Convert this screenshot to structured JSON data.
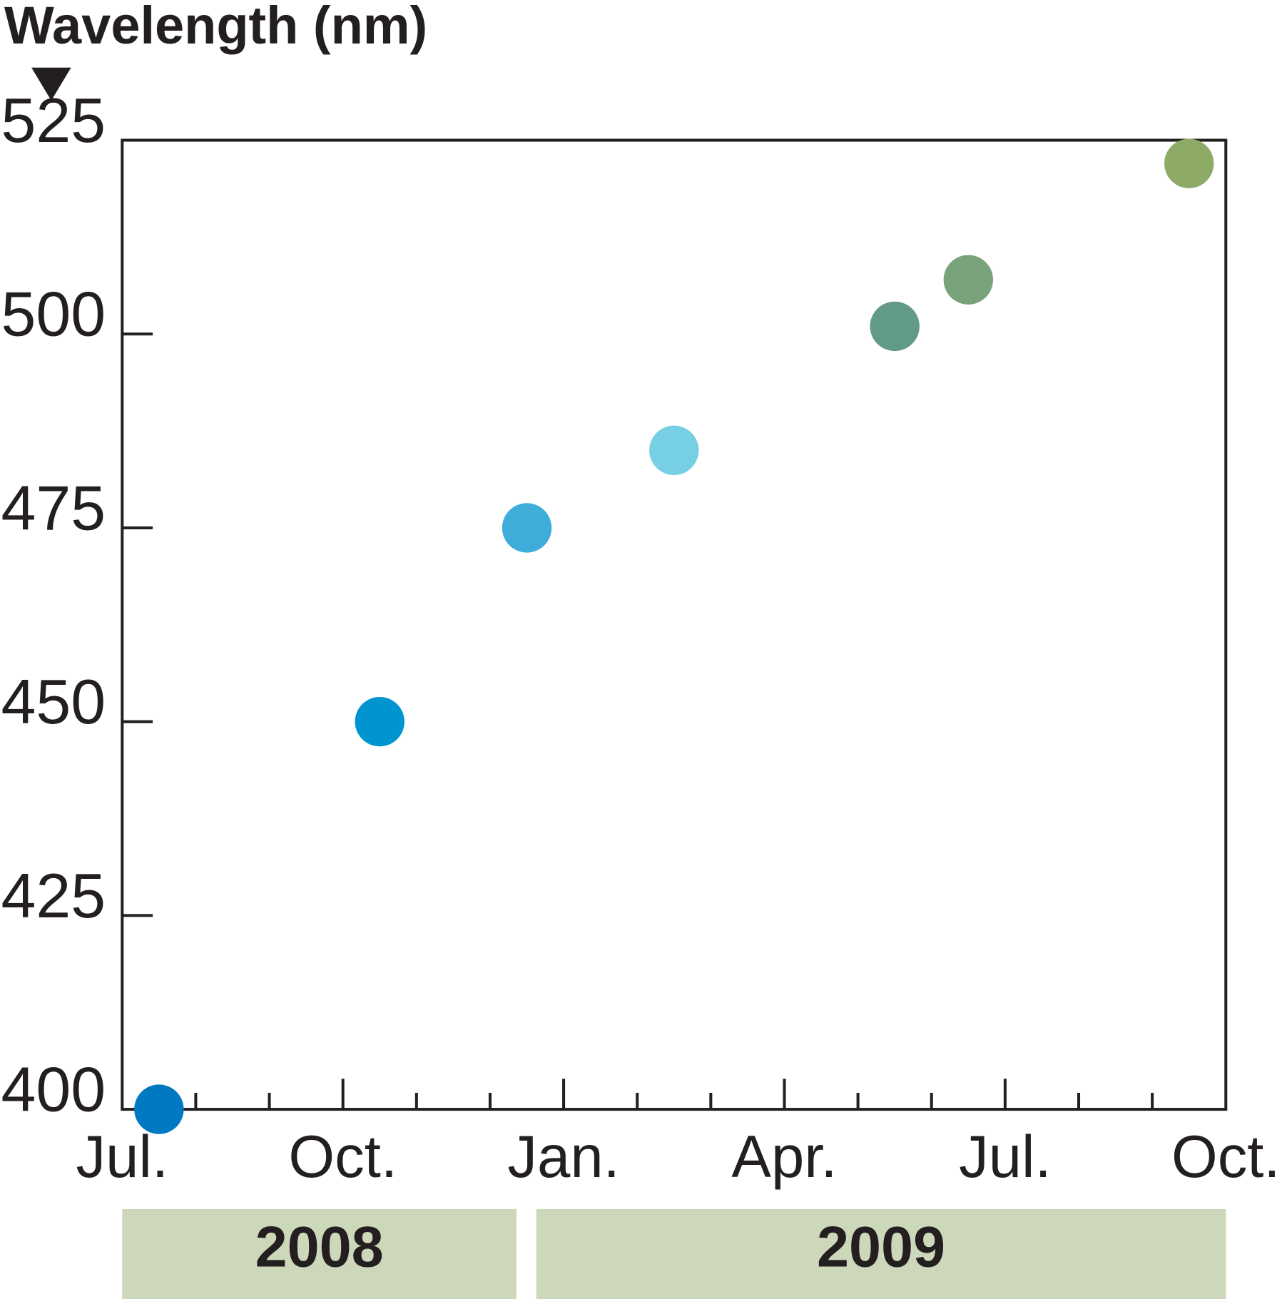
{
  "chart_data": {
    "type": "scatter",
    "y_axis_label": "Wavelength (nm)",
    "x": [
      "2008-07",
      "2008-10",
      "2008-12",
      "2009-02",
      "2009-05",
      "2009-06",
      "2009-09"
    ],
    "values": [
      400,
      450,
      475,
      485,
      501,
      507,
      522
    ],
    "colors": [
      "#0079c2",
      "#0095d0",
      "#3fadd9",
      "#76cfe2",
      "#619a89",
      "#7aa27a",
      "#8dab66"
    ],
    "xlim": [
      "2008-07",
      "2009-10"
    ],
    "xticks": [
      {
        "value": "2008-07",
        "label": "Jul."
      },
      {
        "value": "2008-10",
        "label": "Oct."
      },
      {
        "value": "2009-01",
        "label": "Jan."
      },
      {
        "value": "2009-04",
        "label": "Apr."
      },
      {
        "value": "2009-07",
        "label": "Jul."
      },
      {
        "value": "2009-10",
        "label": "Oct."
      }
    ],
    "xticks_minor": [
      "2008-08",
      "2008-09",
      "2008-11",
      "2008-12",
      "2009-02",
      "2009-03",
      "2009-05",
      "2009-06",
      "2009-08",
      "2009-09"
    ],
    "x_groups": [
      "2008",
      "2009"
    ],
    "ylim": [
      400,
      525
    ],
    "yticks": [
      400,
      425,
      450,
      475,
      500,
      525
    ],
    "group_color": "#cdd8bb"
  }
}
